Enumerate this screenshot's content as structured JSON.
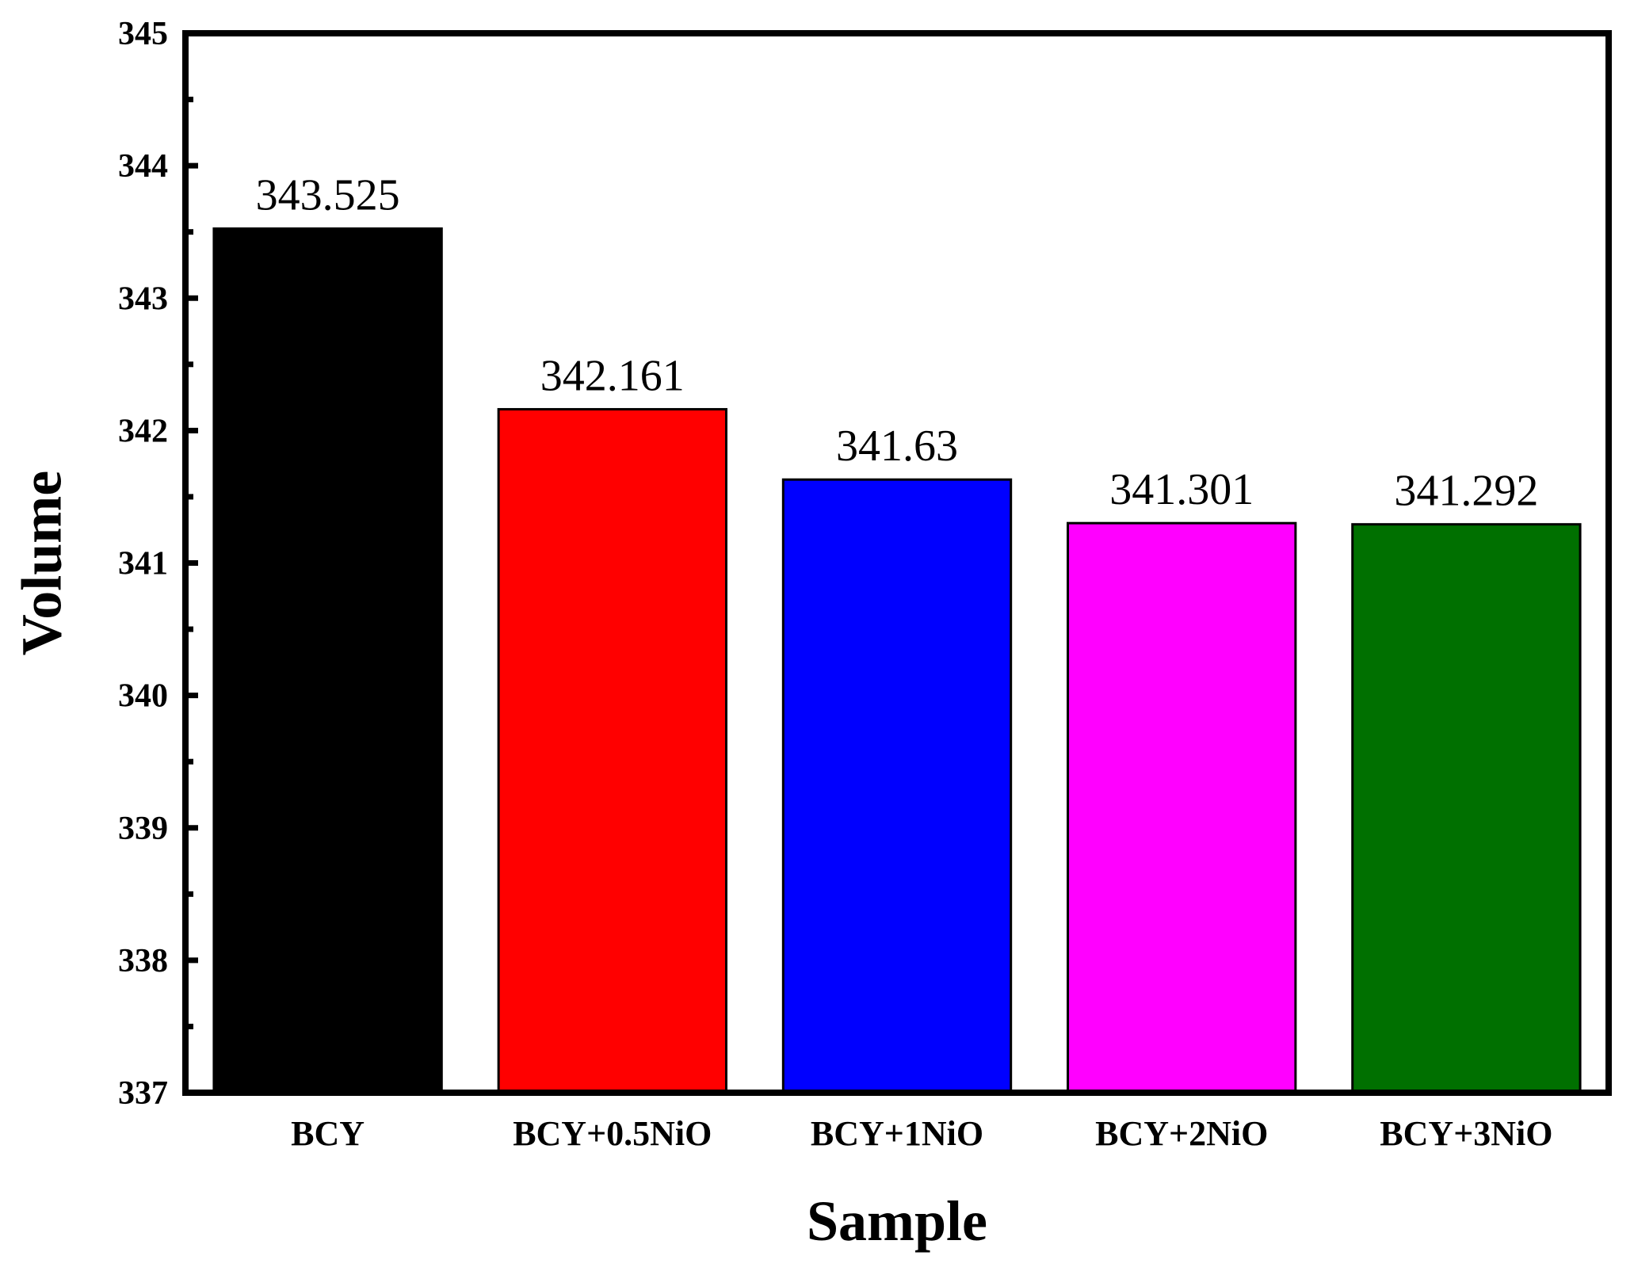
{
  "chart_data": {
    "type": "bar",
    "title": "",
    "xlabel": "Sample",
    "ylabel": "Volume",
    "categories": [
      "BCY",
      "BCY+0.5NiO",
      "BCY+1NiO",
      "BCY+2NiO",
      "BCY+3NiO"
    ],
    "values": [
      343.525,
      342.161,
      341.63,
      341.301,
      341.292
    ],
    "value_labels": [
      "343.525",
      "342.161",
      "341.63",
      "341.301",
      "341.292"
    ],
    "bar_colors": [
      "#000000",
      "#ff0000",
      "#0000ff",
      "#ff00ff",
      "#007000"
    ],
    "ylim": [
      337,
      345
    ],
    "yticks": [
      "337",
      "338",
      "339",
      "340",
      "341",
      "342",
      "343",
      "344",
      "345"
    ],
    "grid": false,
    "legend": "none"
  }
}
